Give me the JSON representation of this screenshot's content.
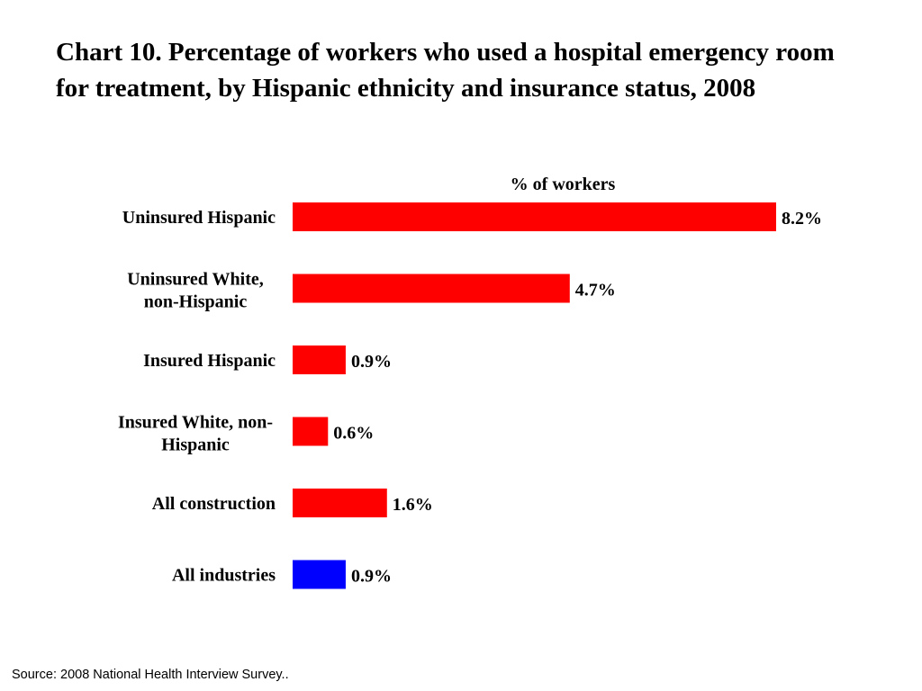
{
  "chart_data": {
    "type": "bar",
    "orientation": "horizontal",
    "title": "Chart 10. Percentage of workers who used a hospital emergency room for treatment, by Hispanic ethnicity and insurance status, 2008",
    "xlabel": "% of workers",
    "ylabel": "",
    "categories": [
      "Uninsured Hispanic",
      "Uninsured White, non-Hispanic",
      "Insured Hispanic",
      "Insured White, non-Hispanic",
      "All construction",
      "All industries"
    ],
    "category_display": [
      [
        "Uninsured Hispanic"
      ],
      [
        "Uninsured White,",
        "non-Hispanic"
      ],
      [
        "Insured Hispanic"
      ],
      [
        "Insured White, non-",
        "Hispanic"
      ],
      [
        "All construction"
      ],
      [
        "All industries"
      ]
    ],
    "values": [
      8.2,
      4.7,
      0.9,
      0.6,
      1.6,
      0.9
    ],
    "value_labels": [
      "8.2%",
      "4.7%",
      "0.9%",
      "0.6%",
      "1.6%",
      "0.9%"
    ],
    "colors": [
      "#ff0000",
      "#ff0000",
      "#ff0000",
      "#ff0000",
      "#ff0000",
      "#0000ff"
    ],
    "xlim": [
      0,
      8.2
    ],
    "grid": false,
    "legend": "none"
  },
  "footer": {
    "source": "Source: 2008 National Health Interview Survey.."
  }
}
